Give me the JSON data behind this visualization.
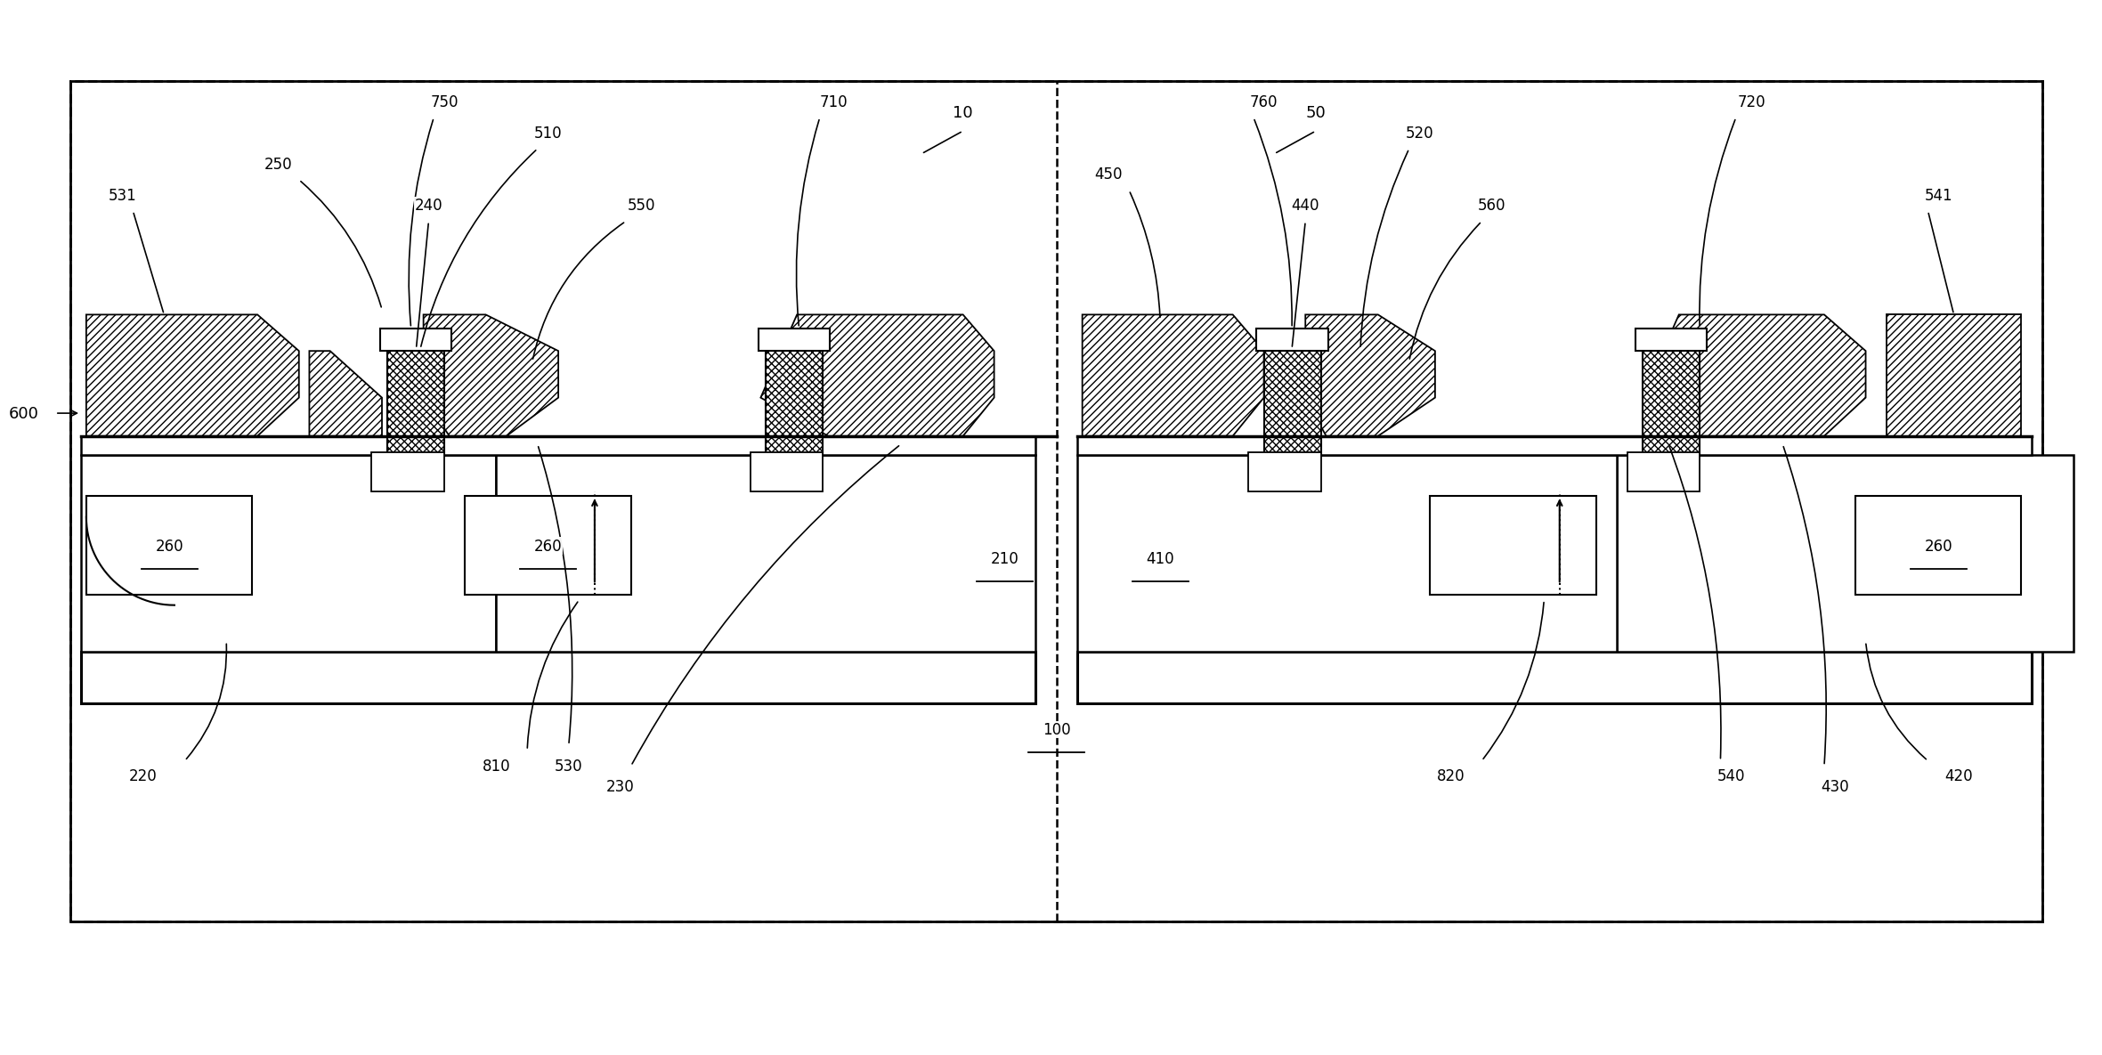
{
  "bg": "#ffffff",
  "lc": "#000000",
  "fw": 23.46,
  "fh": 12.92,
  "dpi": 100,
  "notes": "coordinate system: x in [0,20], y in [0,10], aspect=equal"
}
